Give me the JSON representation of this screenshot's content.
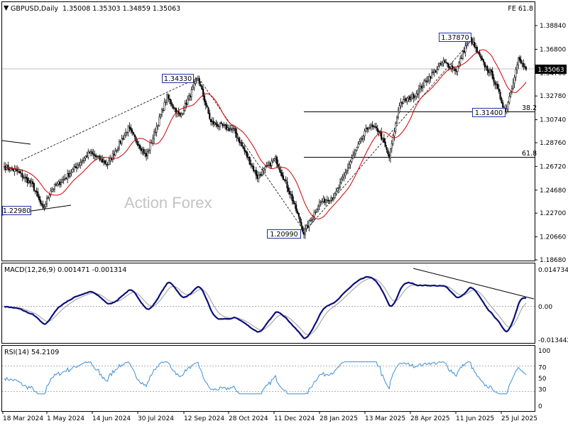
{
  "chart_data": {
    "type": "candlestick",
    "title": "GBPUSD,Daily",
    "ohlc": "1.35008 1.35303 1.34859 1.35063",
    "fe_label": "FE 61.8",
    "watermark": "Action Forex",
    "current_price": "1.35063",
    "price_axis": {
      "ticks": [
        "1.38840",
        "1.36800",
        "1.34760",
        "1.32780",
        "1.30740",
        "1.28760",
        "1.26720",
        "1.24680",
        "1.22700",
        "1.20660",
        "1.18680"
      ],
      "range": [
        1.1868,
        1.4004
      ]
    },
    "time_axis": {
      "ticks": [
        "18 Mar 2024",
        "1 May 2024",
        "14 Jun 2024",
        "30 Jul 2024",
        "12 Sep 2024",
        "28 Oct 2024",
        "11 Dec 2024",
        "28 Jan 2025",
        "13 Mar 2025",
        "28 Apr 2025",
        "11 Jun 2025",
        "25 Jul 2025"
      ]
    },
    "annotations": {
      "swing_labels": [
        "1.22980",
        "1.34330",
        "1.20990",
        "1.37870",
        "1.31400"
      ],
      "fib_levels": [
        {
          "label": "38.2",
          "price": 1.314
        },
        {
          "label": "61.8",
          "price": 1.275
        }
      ]
    },
    "price_anchors": [
      {
        "i": 0,
        "p": 1.267
      },
      {
        "i": 10,
        "p": 1.263
      },
      {
        "i": 22,
        "p": 1.251
      },
      {
        "i": 30,
        "p": 1.2298
      },
      {
        "i": 36,
        "p": 1.247
      },
      {
        "i": 48,
        "p": 1.258
      },
      {
        "i": 66,
        "p": 1.279
      },
      {
        "i": 80,
        "p": 1.269
      },
      {
        "i": 96,
        "p": 1.3
      },
      {
        "i": 110,
        "p": 1.276
      },
      {
        "i": 126,
        "p": 1.327
      },
      {
        "i": 136,
        "p": 1.31
      },
      {
        "i": 150,
        "p": 1.3433
      },
      {
        "i": 160,
        "p": 1.305
      },
      {
        "i": 178,
        "p": 1.298
      },
      {
        "i": 196,
        "p": 1.258
      },
      {
        "i": 210,
        "p": 1.274
      },
      {
        "i": 222,
        "p": 1.242
      },
      {
        "i": 232,
        "p": 1.2099
      },
      {
        "i": 244,
        "p": 1.236
      },
      {
        "i": 256,
        "p": 1.242
      },
      {
        "i": 270,
        "p": 1.276
      },
      {
        "i": 282,
        "p": 1.302
      },
      {
        "i": 290,
        "p": 1.298
      },
      {
        "i": 298,
        "p": 1.275
      },
      {
        "i": 306,
        "p": 1.321
      },
      {
        "i": 318,
        "p": 1.329
      },
      {
        "i": 328,
        "p": 1.343
      },
      {
        "i": 340,
        "p": 1.357
      },
      {
        "i": 350,
        "p": 1.35
      },
      {
        "i": 360,
        "p": 1.3787
      },
      {
        "i": 370,
        "p": 1.357
      },
      {
        "i": 378,
        "p": 1.345
      },
      {
        "i": 388,
        "p": 1.314
      },
      {
        "i": 398,
        "p": 1.359
      },
      {
        "i": 404,
        "p": 1.3506
      }
    ],
    "indicators": [
      {
        "name": "MACD(12,26,9) 0.001471 -0.001314",
        "axis": [
          "0.014734",
          "0.00",
          "-0.013442"
        ],
        "range": [
          -0.0158,
          0.0165
        ]
      },
      {
        "name": "RSI(14) 54.2109",
        "axis": [
          "100",
          "70",
          "50",
          "30",
          "0"
        ],
        "levels": [
          70,
          30
        ],
        "range": [
          0,
          100
        ]
      }
    ],
    "colors": {
      "candles": "#000000",
      "ma": "#d00000",
      "macd": "#0a0f7a",
      "signal": "#9a9a9a",
      "rsi": "#3c8fd6",
      "label_box": "#1d33a6",
      "grid": "#c8c8c8"
    }
  }
}
